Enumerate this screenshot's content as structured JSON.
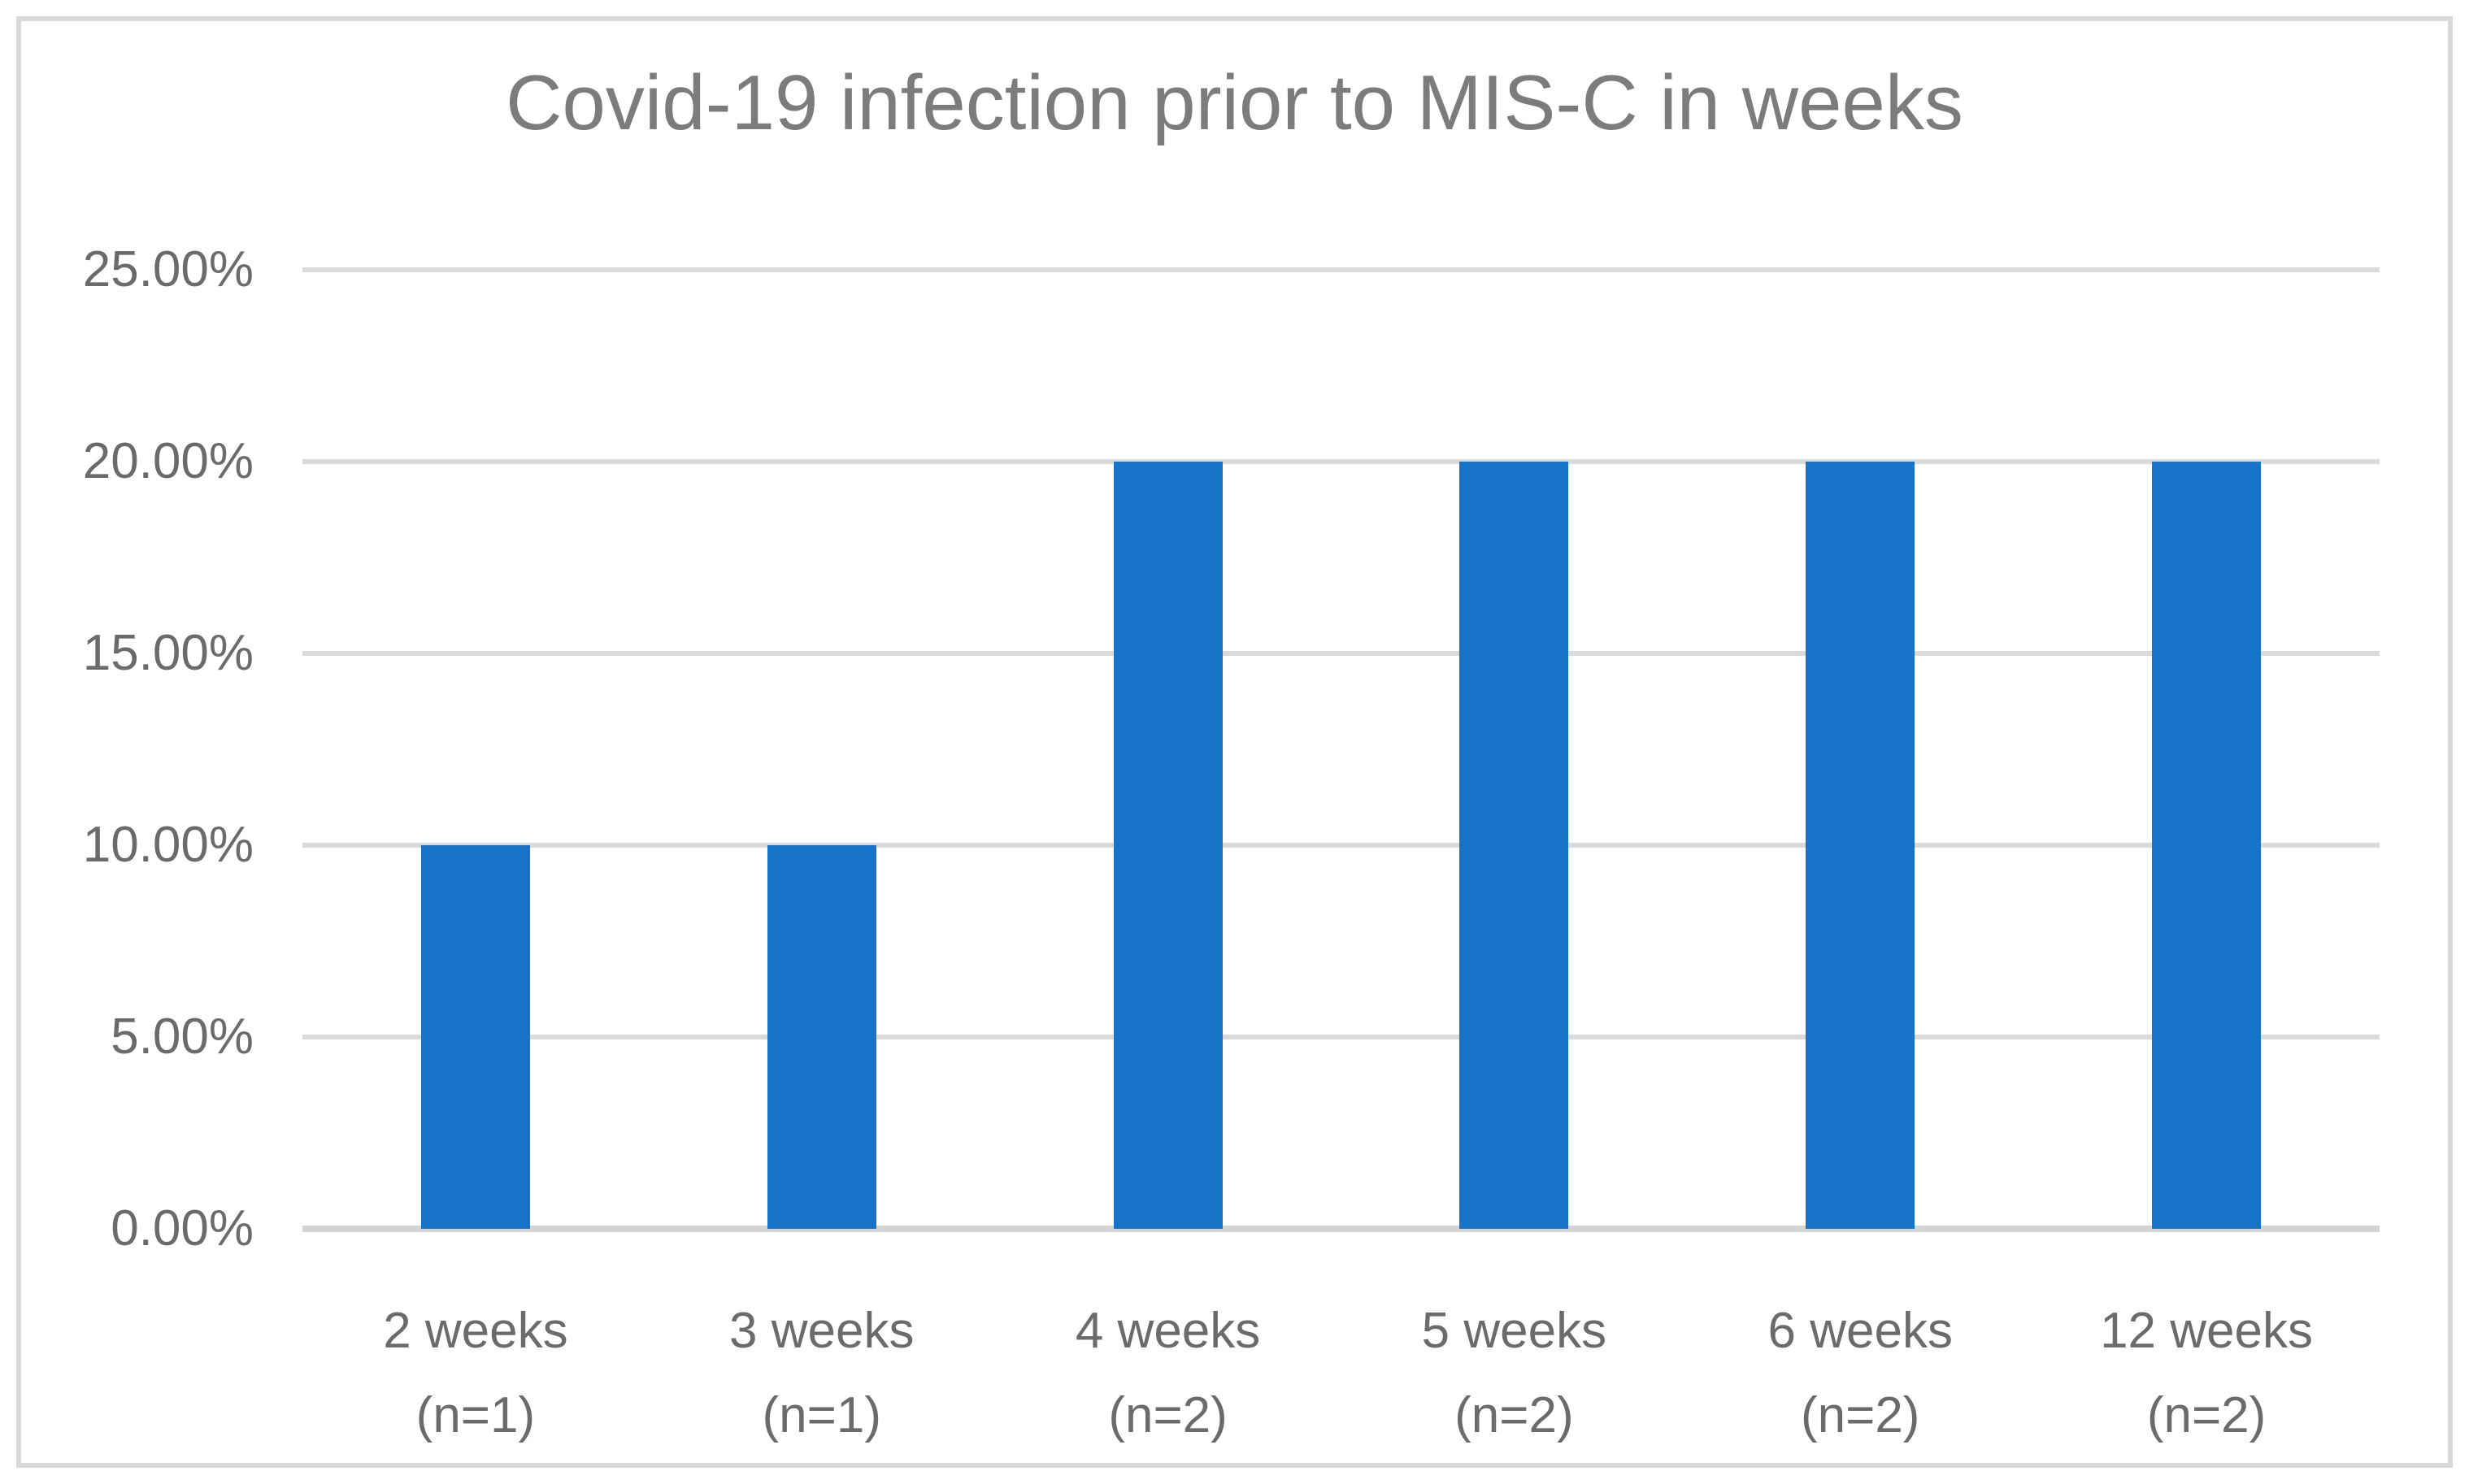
{
  "chart_data": {
    "type": "bar",
    "title": "Covid-19 infection prior to MIS-C in weeks",
    "categories": [
      {
        "label": "2 weeks",
        "count": "(n=1)"
      },
      {
        "label": "3 weeks",
        "count": "(n=1)"
      },
      {
        "label": "4 weeks",
        "count": "(n=2)"
      },
      {
        "label": "5 weeks",
        "count": "(n=2)"
      },
      {
        "label": "6 weeks",
        "count": "(n=2)"
      },
      {
        "label": "12 weeks",
        "count": "(n=2)"
      }
    ],
    "values": [
      10,
      10,
      20,
      20,
      20,
      20
    ],
    "value_unit": "%",
    "xlabel": "",
    "ylabel": "",
    "ylim": [
      0,
      25
    ],
    "ytick_step": 5,
    "ytick_labels": [
      "0.00%",
      "5.00%",
      "10.00%",
      "15.00%",
      "20.00%",
      "25.00%"
    ],
    "grid": true,
    "legend_position": "none",
    "colors": {
      "bar": "#1773C7",
      "gridline": "#DADADA",
      "axis_line": "#D3D3D3",
      "title_text": "#7C7C7C",
      "tick_text": "#6B6B6B",
      "frame_border": "#D9D9D9",
      "background": "#FFFFFF"
    }
  }
}
